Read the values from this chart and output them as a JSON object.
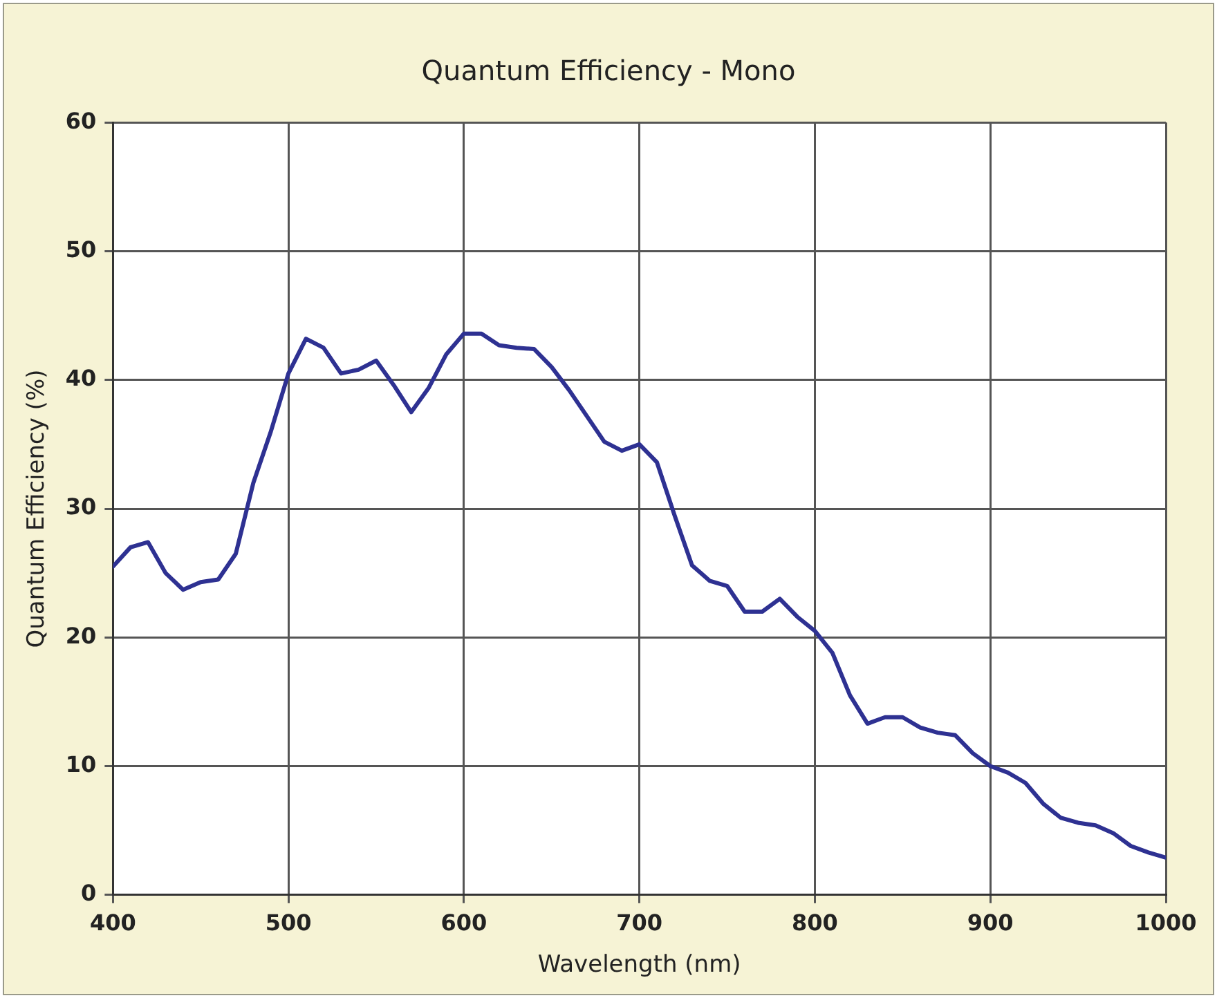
{
  "chart_data": {
    "type": "line",
    "title": "Quantum Efficiency - Mono",
    "xlabel": "Wavelength (nm)",
    "ylabel": "Quantum Efficiency (%)",
    "x": [
      400,
      410,
      420,
      430,
      440,
      450,
      460,
      470,
      480,
      490,
      500,
      510,
      520,
      530,
      540,
      550,
      560,
      570,
      580,
      590,
      600,
      610,
      620,
      630,
      640,
      650,
      660,
      670,
      680,
      690,
      700,
      710,
      720,
      730,
      740,
      750,
      760,
      770,
      780,
      790,
      800,
      810,
      820,
      830,
      840,
      850,
      860,
      870,
      880,
      890,
      900,
      910,
      920,
      930,
      940,
      950,
      960,
      970,
      980,
      990,
      1000
    ],
    "series": [
      {
        "color": "#2e3192",
        "values": [
          25.5,
          27,
          27.4,
          25,
          23.7,
          24.3,
          24.5,
          26.5,
          32,
          36,
          40.5,
          43.2,
          42.5,
          40.5,
          40.8,
          41.5,
          39.6,
          37.5,
          39.4,
          42,
          43.6,
          43.6,
          42.7,
          42.5,
          42.4,
          41,
          39.2,
          37.2,
          35.2,
          34.5,
          35,
          33.6,
          29.5,
          25.6,
          24.4,
          24,
          22,
          22,
          23,
          21.6,
          20.5,
          18.8,
          15.5,
          13.3,
          13.8,
          13.8,
          13,
          12.6,
          12.4,
          11,
          10,
          9.5,
          8.7,
          7.1,
          6,
          5.6,
          5.4,
          4.8,
          3.8,
          3.3,
          2.9
        ]
      }
    ],
    "xlim": [
      400,
      1000
    ],
    "xticks": [
      400,
      500,
      600,
      700,
      800,
      900,
      1000
    ],
    "ylim": [
      0,
      60
    ],
    "yticks": [
      0,
      10,
      20,
      30,
      40,
      50,
      60
    ],
    "grid": true,
    "legend": false,
    "marker": "none",
    "line_style": "solid"
  }
}
